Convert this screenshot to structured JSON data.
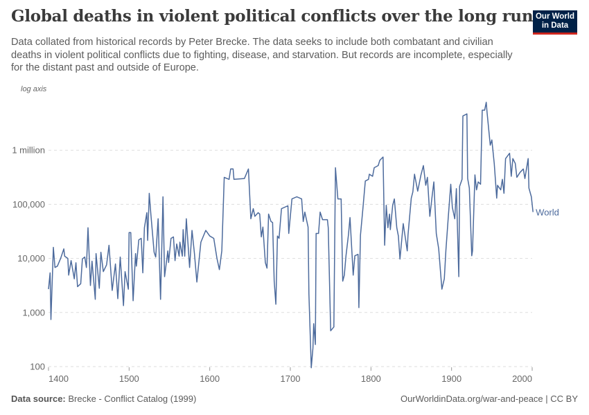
{
  "header": {
    "title": "Global deaths in violent political conflicts over the long run",
    "subtitle": "Data collated from historical records by Peter Brecke. The data seeks to include both combatant and civilian deaths in violent political conflicts due to fighting, disease, and starvation. But records are incomplete, especially for the distant past and outside of Europe.",
    "logo_line1": "Our World",
    "logo_line2": "in Data"
  },
  "footer": {
    "source_label": "Data source:",
    "source": "Brecke - Conflict Catalog (1999)",
    "credit": "OurWorldinData.org/war-and-peace | CC BY"
  },
  "chart_data": {
    "type": "line",
    "title": "Global deaths in violent political conflicts over the long run",
    "yscale": "log",
    "yscale_note": "log axis",
    "xlim": [
      1400,
      2000
    ],
    "ylim": [
      100,
      8000000
    ],
    "grid": "horizontal dashed",
    "xticks": [
      1400,
      1500,
      1600,
      1700,
      1800,
      1900,
      2000
    ],
    "xtick_labels": [
      "1400",
      "1500",
      "1600",
      "1700",
      "1800",
      "1900",
      "2000"
    ],
    "yticks": [
      100,
      1000,
      10000,
      100000,
      1000000
    ],
    "ytick_labels": [
      "100",
      "1,000",
      "10,000",
      "100,000",
      "1 million"
    ],
    "legend": "end-of-line label",
    "series": [
      {
        "name": "World",
        "color": "#4c6a9c",
        "x": [
          1400,
          1402,
          1403,
          1406,
          1408,
          1411,
          1415,
          1419,
          1420,
          1424,
          1425,
          1428,
          1432,
          1434,
          1436,
          1440,
          1442,
          1445,
          1447,
          1449,
          1452,
          1454,
          1458,
          1459,
          1463,
          1465,
          1468,
          1472,
          1475,
          1479,
          1483,
          1486,
          1489,
          1493,
          1495,
          1499,
          1500,
          1502,
          1505,
          1508,
          1509,
          1512,
          1515,
          1517,
          1519,
          1522,
          1523,
          1525,
          1527,
          1531,
          1533,
          1536,
          1539,
          1542,
          1544,
          1548,
          1549,
          1552,
          1555,
          1557,
          1559,
          1562,
          1563,
          1566,
          1567,
          1569,
          1571,
          1575,
          1578,
          1581,
          1584,
          1589,
          1595,
          1600,
          1605,
          1609,
          1612,
          1615,
          1618,
          1624,
          1626,
          1629,
          1630,
          1643,
          1648,
          1651,
          1654,
          1656,
          1660,
          1662,
          1664,
          1666,
          1669,
          1671,
          1673,
          1676,
          1678,
          1680,
          1682,
          1684,
          1686,
          1689,
          1697,
          1698,
          1702,
          1708,
          1714,
          1716,
          1718,
          1722,
          1723,
          1726,
          1728,
          1729,
          1731,
          1732,
          1735,
          1737,
          1740,
          1746,
          1747,
          1750,
          1754,
          1756,
          1759,
          1763,
          1765,
          1767,
          1769,
          1772,
          1774,
          1778,
          1780,
          1784,
          1785,
          1787,
          1790,
          1793,
          1797,
          1798,
          1802,
          1804,
          1809,
          1811,
          1815,
          1817,
          1819,
          1821,
          1823,
          1824,
          1827,
          1829,
          1832,
          1834,
          1836,
          1840,
          1845,
          1846,
          1850,
          1852,
          1854,
          1858,
          1862,
          1865,
          1868,
          1870,
          1873,
          1876,
          1878,
          1881,
          1884,
          1888,
          1891,
          1893,
          1896,
          1899,
          1901,
          1904,
          1906,
          1909,
          1910,
          1913,
          1914,
          1919,
          1920,
          1922,
          1925,
          1926,
          1929,
          1931,
          1933,
          1936,
          1938,
          1941,
          1943,
          1944,
          1948,
          1950,
          1953,
          1956,
          1957,
          1961,
          1963,
          1965,
          1967,
          1972,
          1974,
          1976,
          1979,
          1981,
          1985,
          1989,
          1991,
          1995,
          1996,
          1999,
          2001
        ],
        "y": [
          2700,
          5400,
          740,
          16000,
          6800,
          7200,
          10000,
          15000,
          11000,
          10000,
          4900,
          9100,
          4200,
          8300,
          3000,
          3400,
          9800,
          10600,
          6800,
          37000,
          3150,
          8900,
          1750,
          12300,
          2800,
          13000,
          5700,
          7600,
          17500,
          2560,
          7900,
          1800,
          10600,
          1340,
          5700,
          2700,
          30000,
          30000,
          1650,
          12300,
          7200,
          22000,
          23500,
          5400,
          37000,
          70000,
          21500,
          160000,
          66000,
          13000,
          10600,
          54000,
          1750,
          138000,
          4600,
          13800,
          8400,
          23500,
          25000,
          9100,
          18500,
          11000,
          20000,
          11000,
          34000,
          11000,
          54000,
          6800,
          33000,
          12300,
          3650,
          20000,
          33000,
          26000,
          23500,
          10000,
          6200,
          13800,
          315000,
          290000,
          450000,
          450000,
          290000,
          300000,
          450000,
          54000,
          83000,
          60000,
          70000,
          66000,
          25000,
          38000,
          8400,
          6600,
          66000,
          48000,
          46000,
          3800,
          1420,
          26000,
          23500,
          83000,
          94000,
          29000,
          126000,
          138000,
          126000,
          48000,
          72000,
          38000,
          2200,
          95,
          220,
          620,
          256,
          29000,
          29000,
          72000,
          52000,
          52000,
          37000,
          460,
          540,
          475000,
          126000,
          126000,
          3800,
          4900,
          11200,
          27000,
          57000,
          4900,
          11200,
          11900,
          1230,
          27000,
          83000,
          270000,
          290000,
          360000,
          330000,
          475000,
          520000,
          650000,
          750000,
          17500,
          96000,
          37000,
          66000,
          34000,
          96000,
          126000,
          37000,
          26000,
          9700,
          44000,
          13800,
          27000,
          130000,
          170000,
          360000,
          175000,
          350000,
          520000,
          225000,
          315000,
          60000,
          145000,
          260000,
          29000,
          15000,
          2700,
          4200,
          14200,
          60000,
          235000,
          88000,
          54000,
          195000,
          4600,
          215000,
          290000,
          4300000,
          4700000,
          300000,
          200000,
          11200,
          13800,
          350000,
          185000,
          260000,
          235000,
          5500000,
          5500000,
          7700000,
          5000000,
          1240000,
          1550000,
          560000,
          130000,
          225000,
          185000,
          290000,
          160000,
          700000,
          880000,
          330000,
          700000,
          570000,
          315000,
          390000,
          450000,
          300000,
          700000,
          200000,
          138000,
          72000
        ]
      }
    ]
  }
}
